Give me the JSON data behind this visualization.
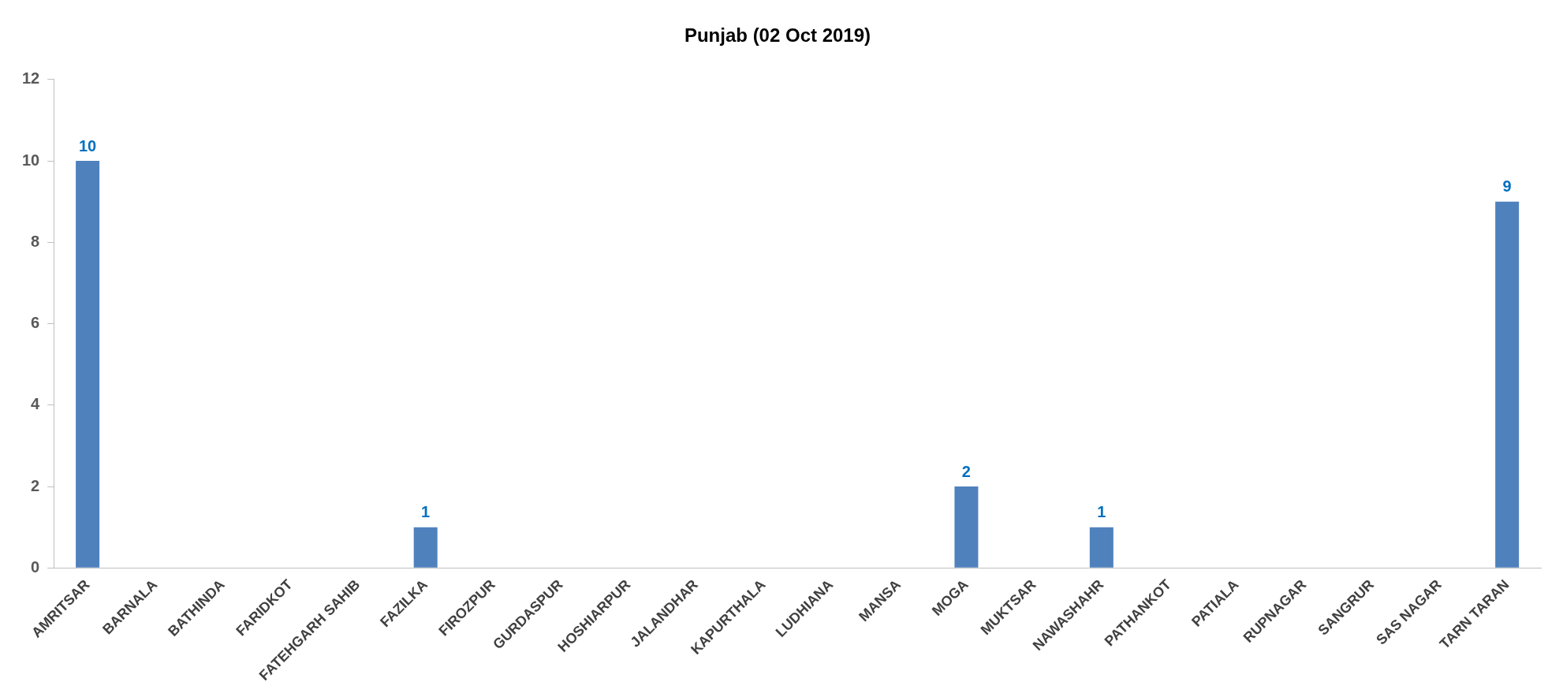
{
  "chart_data": {
    "type": "bar",
    "title": "Punjab (02 Oct 2019)",
    "categories": [
      "AMRITSAR",
      "BARNALA",
      "BATHINDA",
      "FARIDKOT",
      "FATEHGARH SAHIB",
      "FAZILKA",
      "FIROZPUR",
      "GURDASPUR",
      "HOSHIARPUR",
      "JALANDHAR",
      "KAPURTHALA",
      "LUDHIANA",
      "MANSA",
      "MOGA",
      "MUKTSAR",
      "NAWASHAHR",
      "PATHANKOT",
      "PATIALA",
      "RUPNAGAR",
      "SANGRUR",
      "SAS NAGAR",
      "TARN TARAN"
    ],
    "values": [
      10,
      0,
      0,
      0,
      0,
      1,
      0,
      0,
      0,
      0,
      0,
      0,
      0,
      2,
      0,
      1,
      0,
      0,
      0,
      0,
      0,
      9
    ],
    "value_labels": [
      "10",
      null,
      null,
      null,
      null,
      "1",
      null,
      null,
      null,
      null,
      null,
      null,
      null,
      "2",
      null,
      "1",
      null,
      null,
      null,
      null,
      null,
      "9"
    ],
    "color": "#4f81bd",
    "ylim": [
      0,
      12
    ],
    "yticks": [
      0,
      2,
      4,
      6,
      8,
      10,
      12
    ],
    "grid": false,
    "legend": false
  }
}
